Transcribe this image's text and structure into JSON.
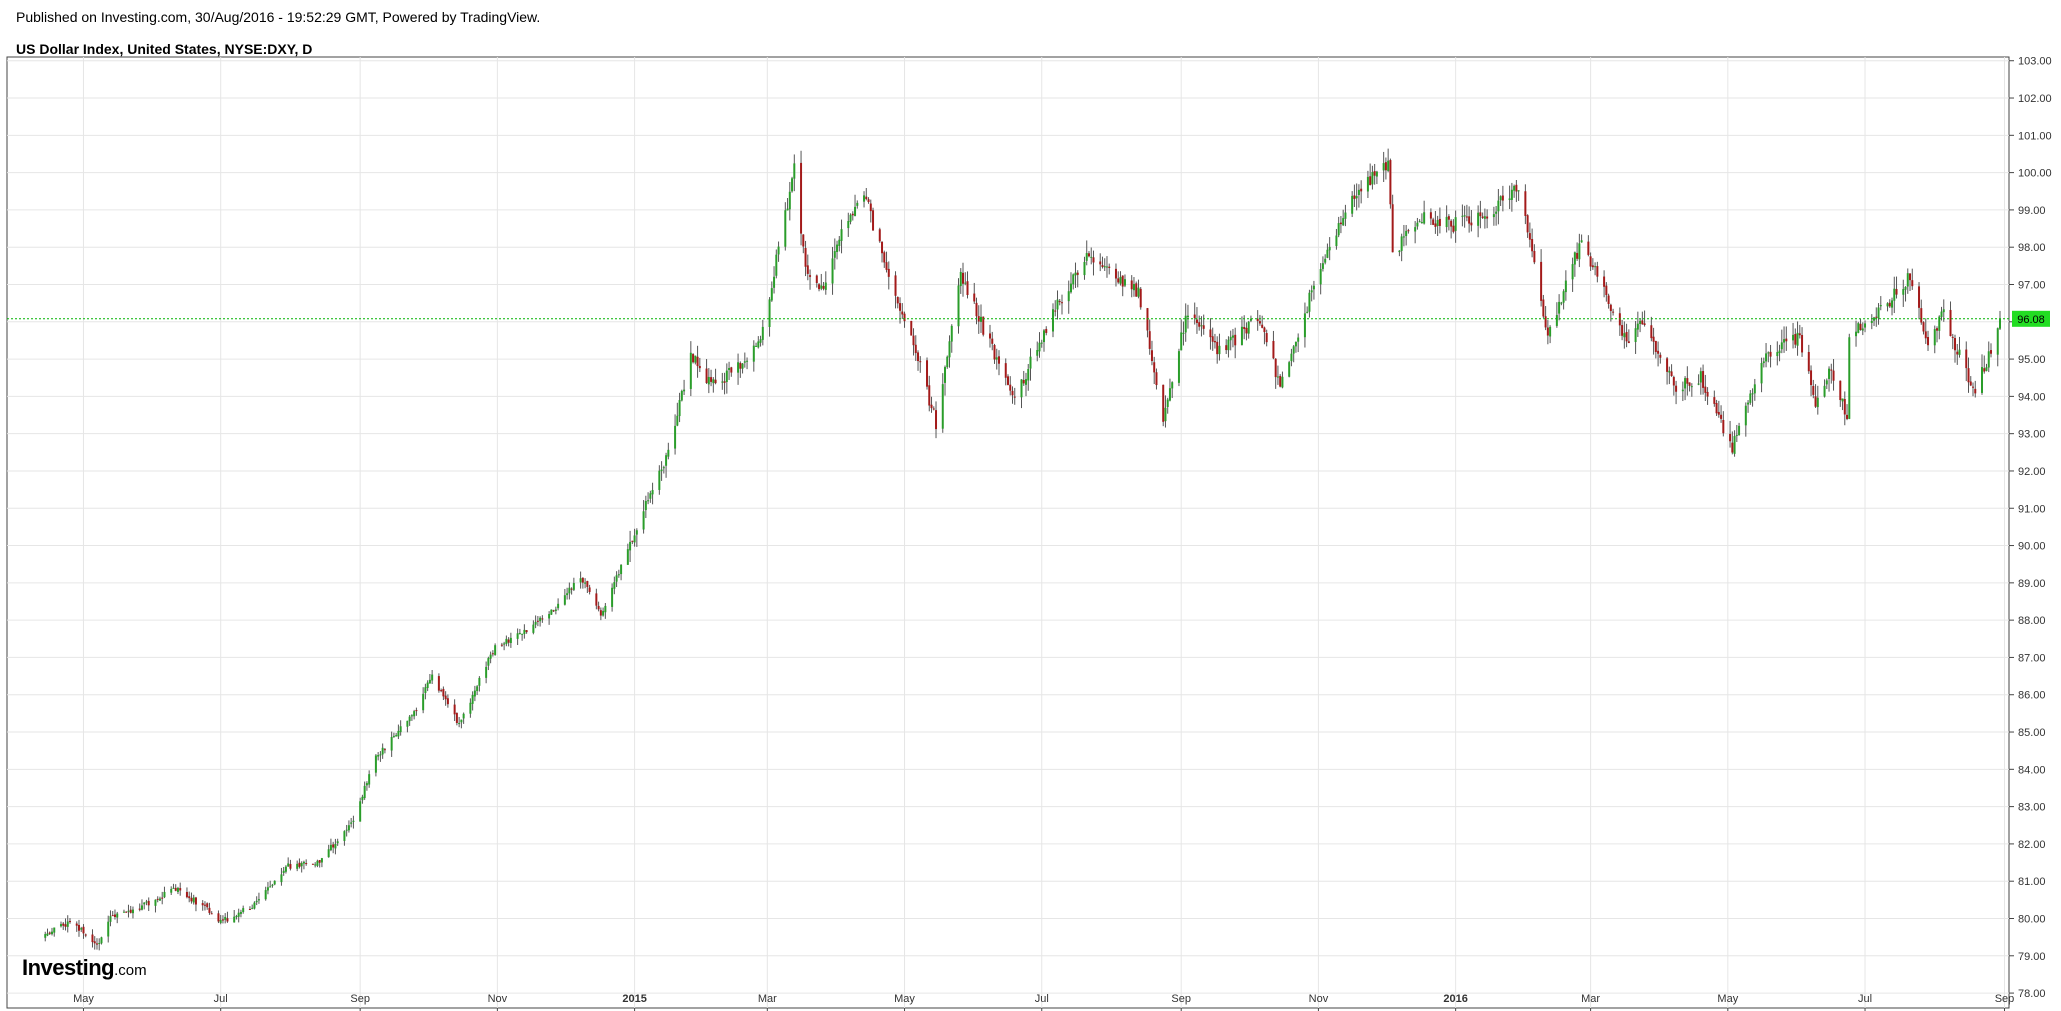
{
  "header": {
    "published": "Published on Investing.com, 30/Aug/2016 - 19:52:29 GMT, Powered by TradingView.",
    "title": "US Dollar Index, United States, NYSE:DXY, D"
  },
  "logo": {
    "brand": "Investing",
    "tld": ".com"
  },
  "chart_data": {
    "type": "candlestick",
    "title": "US Dollar Index, United States, NYSE:DXY, D",
    "ylim": [
      77.6,
      103.1
    ],
    "y_ticks": [
      "78.00",
      "79.00",
      "80.00",
      "81.00",
      "82.00",
      "83.00",
      "84.00",
      "85.00",
      "86.00",
      "87.00",
      "88.00",
      "89.00",
      "90.00",
      "91.00",
      "92.00",
      "93.00",
      "94.00",
      "95.00",
      "96.00",
      "97.00",
      "98.00",
      "99.00",
      "100.00",
      "101.00",
      "102.00",
      "103.00"
    ],
    "x_ticks": [
      {
        "label": "May",
        "date": "2014-05-01",
        "bold": false
      },
      {
        "label": "Jul",
        "date": "2014-07-01",
        "bold": false
      },
      {
        "label": "Sep",
        "date": "2014-09-01",
        "bold": false
      },
      {
        "label": "Nov",
        "date": "2014-11-01",
        "bold": false
      },
      {
        "label": "2015",
        "date": "2015-01-01",
        "bold": true
      },
      {
        "label": "Mar",
        "date": "2015-03-01",
        "bold": false
      },
      {
        "label": "May",
        "date": "2015-05-01",
        "bold": false
      },
      {
        "label": "Jul",
        "date": "2015-07-01",
        "bold": false
      },
      {
        "label": "Sep",
        "date": "2015-09-01",
        "bold": false
      },
      {
        "label": "Nov",
        "date": "2015-11-01",
        "bold": false
      },
      {
        "label": "2016",
        "date": "2016-01-01",
        "bold": true
      },
      {
        "label": "Mar",
        "date": "2016-03-01",
        "bold": false
      },
      {
        "label": "May",
        "date": "2016-05-01",
        "bold": false
      },
      {
        "label": "Jul",
        "date": "2016-07-01",
        "bold": false
      },
      {
        "label": "Sep",
        "date": "2016-09-01",
        "bold": false
      }
    ],
    "last_price": 96.08,
    "last_price_label": "96.08",
    "colors": {
      "up": "#2a9d2a",
      "down": "#a31a1a",
      "wick": "#555555",
      "price_line": "#00b400",
      "price_tag": "#22dd22",
      "grid": "#e6e6e6"
    },
    "close_path": [
      {
        "date": "2014-04-14",
        "value": 79.6
      },
      {
        "date": "2014-04-25",
        "value": 79.9
      },
      {
        "date": "2014-05-08",
        "value": 79.3
      },
      {
        "date": "2014-05-13",
        "value": 80.0
      },
      {
        "date": "2014-05-30",
        "value": 80.4
      },
      {
        "date": "2014-06-11",
        "value": 80.8
      },
      {
        "date": "2014-06-24",
        "value": 80.3
      },
      {
        "date": "2014-07-01",
        "value": 79.9
      },
      {
        "date": "2014-07-14",
        "value": 80.3
      },
      {
        "date": "2014-07-31",
        "value": 81.4
      },
      {
        "date": "2014-08-14",
        "value": 81.5
      },
      {
        "date": "2014-08-29",
        "value": 82.7
      },
      {
        "date": "2014-09-08",
        "value": 84.3
      },
      {
        "date": "2014-09-25",
        "value": 85.5
      },
      {
        "date": "2014-10-03",
        "value": 86.5
      },
      {
        "date": "2014-10-15",
        "value": 85.2
      },
      {
        "date": "2014-10-31",
        "value": 87.3
      },
      {
        "date": "2014-11-14",
        "value": 87.7
      },
      {
        "date": "2014-11-28",
        "value": 88.4
      },
      {
        "date": "2014-12-08",
        "value": 89.2
      },
      {
        "date": "2014-12-17",
        "value": 88.1
      },
      {
        "date": "2014-12-31",
        "value": 90.2
      },
      {
        "date": "2015-01-16",
        "value": 92.4
      },
      {
        "date": "2015-01-26",
        "value": 95.1
      },
      {
        "date": "2015-02-06",
        "value": 94.2
      },
      {
        "date": "2015-02-26",
        "value": 95.5
      },
      {
        "date": "2015-03-13",
        "value": 100.1
      },
      {
        "date": "2015-03-18",
        "value": 97.4
      },
      {
        "date": "2015-03-26",
        "value": 96.8
      },
      {
        "date": "2015-04-03",
        "value": 98.5
      },
      {
        "date": "2015-04-13",
        "value": 99.5
      },
      {
        "date": "2015-04-24",
        "value": 97.1
      },
      {
        "date": "2015-05-08",
        "value": 94.8
      },
      {
        "date": "2015-05-15",
        "value": 93.3
      },
      {
        "date": "2015-05-26",
        "value": 97.3
      },
      {
        "date": "2015-06-10",
        "value": 95.1
      },
      {
        "date": "2015-06-19",
        "value": 94.0
      },
      {
        "date": "2015-07-07",
        "value": 96.3
      },
      {
        "date": "2015-07-21",
        "value": 97.9
      },
      {
        "date": "2015-07-31",
        "value": 97.4
      },
      {
        "date": "2015-08-13",
        "value": 96.8
      },
      {
        "date": "2015-08-24",
        "value": 93.5
      },
      {
        "date": "2015-09-04",
        "value": 96.3
      },
      {
        "date": "2015-09-18",
        "value": 95.2
      },
      {
        "date": "2015-10-06",
        "value": 96.1
      },
      {
        "date": "2015-10-15",
        "value": 94.2
      },
      {
        "date": "2015-10-30",
        "value": 97.0
      },
      {
        "date": "2015-11-16",
        "value": 99.4
      },
      {
        "date": "2015-12-02",
        "value": 100.2
      },
      {
        "date": "2015-12-04",
        "value": 97.8
      },
      {
        "date": "2015-12-15",
        "value": 98.8
      },
      {
        "date": "2015-12-31",
        "value": 98.6
      },
      {
        "date": "2016-01-15",
        "value": 98.9
      },
      {
        "date": "2016-01-29",
        "value": 99.6
      },
      {
        "date": "2016-02-11",
        "value": 95.6
      },
      {
        "date": "2016-02-26",
        "value": 98.2
      },
      {
        "date": "2016-03-17",
        "value": 95.5
      },
      {
        "date": "2016-03-24",
        "value": 96.1
      },
      {
        "date": "2016-04-08",
        "value": 94.2
      },
      {
        "date": "2016-04-19",
        "value": 94.5
      },
      {
        "date": "2016-05-03",
        "value": 92.6
      },
      {
        "date": "2016-05-18",
        "value": 95.2
      },
      {
        "date": "2016-06-02",
        "value": 95.6
      },
      {
        "date": "2016-06-09",
        "value": 93.8
      },
      {
        "date": "2016-06-16",
        "value": 94.7
      },
      {
        "date": "2016-06-23",
        "value": 93.5
      },
      {
        "date": "2016-06-24",
        "value": 95.7
      },
      {
        "date": "2016-07-08",
        "value": 96.3
      },
      {
        "date": "2016-07-21",
        "value": 97.2
      },
      {
        "date": "2016-07-29",
        "value": 95.5
      },
      {
        "date": "2016-08-05",
        "value": 96.2
      },
      {
        "date": "2016-08-18",
        "value": 94.1
      },
      {
        "date": "2016-08-26",
        "value": 95.2
      },
      {
        "date": "2016-08-30",
        "value": 96.08
      }
    ]
  }
}
